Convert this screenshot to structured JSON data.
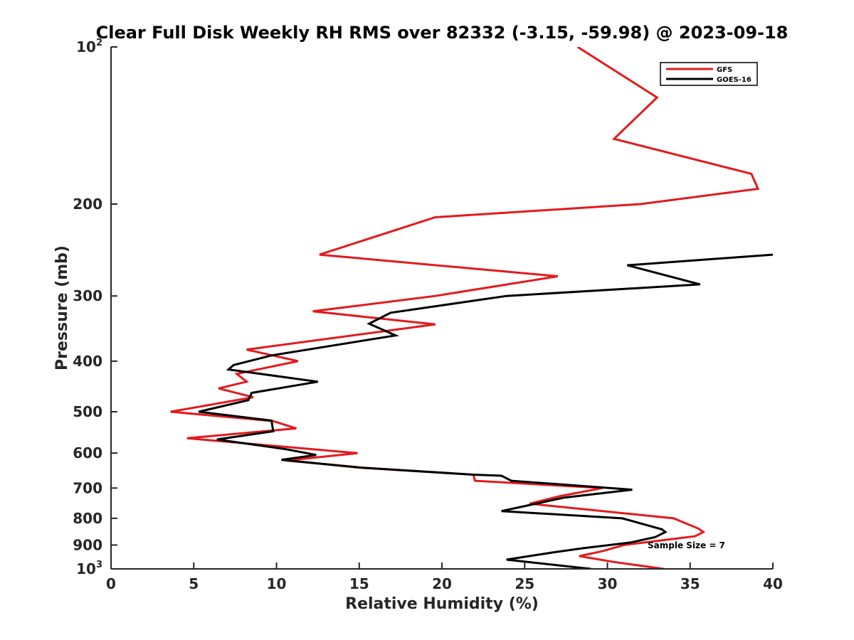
{
  "chart_data": {
    "type": "line",
    "title": "Clear Full Disk Weekly RH RMS over 82332 (-3.15, -59.98) @ 2023-09-18",
    "xlabel": "Relative Humidity (%)",
    "ylabel": "Pressure (mb)",
    "xlim": [
      0,
      40
    ],
    "ylim": [
      100,
      1000
    ],
    "y_scale": "log",
    "y_reversed": true,
    "grid": false,
    "legend_position": "top-right",
    "x_ticks": [
      "0",
      "5",
      "10",
      "15",
      "20",
      "25",
      "30",
      "35",
      "40"
    ],
    "y_ticks": [
      {
        "value": 100,
        "base": "10",
        "exp": "2"
      },
      {
        "value": 200,
        "label": "200"
      },
      {
        "value": 300,
        "label": "300"
      },
      {
        "value": 400,
        "label": "400"
      },
      {
        "value": 500,
        "label": "500"
      },
      {
        "value": 600,
        "label": "600"
      },
      {
        "value": 700,
        "label": "700"
      },
      {
        "value": 800,
        "label": "800"
      },
      {
        "value": 900,
        "label": "900"
      },
      {
        "value": 1000,
        "base": "10",
        "exp": "3"
      }
    ],
    "series": [
      {
        "name": "GFS",
        "color": "#e31a1c",
        "points": [
          [
            28.2,
            100
          ],
          [
            33.0,
            125
          ],
          [
            30.4,
            150
          ],
          [
            38.7,
            175
          ],
          [
            39.1,
            187
          ],
          [
            32.0,
            200
          ],
          [
            19.6,
            212
          ],
          [
            12.6,
            250
          ],
          [
            27.0,
            275
          ],
          [
            19.6,
            300
          ],
          [
            12.2,
            321
          ],
          [
            19.6,
            340
          ],
          [
            8.2,
            380
          ],
          [
            11.3,
            400
          ],
          [
            7.6,
            423
          ],
          [
            8.2,
            438
          ],
          [
            6.5,
            451
          ],
          [
            8.6,
            469
          ],
          [
            3.6,
            500
          ],
          [
            9.8,
            521
          ],
          [
            11.2,
            538
          ],
          [
            4.6,
            562
          ],
          [
            14.9,
            600
          ],
          [
            10.6,
            620
          ],
          [
            15.3,
            640
          ],
          [
            21.9,
            660
          ],
          [
            22.0,
            678
          ],
          [
            29.7,
            700
          ],
          [
            27.1,
            726
          ],
          [
            25.3,
            750
          ],
          [
            34.0,
            800
          ],
          [
            35.5,
            837
          ],
          [
            35.8,
            850
          ],
          [
            35.3,
            866
          ],
          [
            31.0,
            900
          ],
          [
            29.7,
            925
          ],
          [
            28.3,
            945
          ],
          [
            30.4,
            970
          ],
          [
            33.4,
            1000
          ]
        ]
      },
      {
        "name": "GOES-16",
        "color": "#000000",
        "points": [
          [
            40.0,
            250
          ],
          [
            31.2,
            262
          ],
          [
            35.6,
            285
          ],
          [
            23.9,
            300
          ],
          [
            16.9,
            323
          ],
          [
            15.6,
            339
          ],
          [
            17.2,
            357
          ],
          [
            9.7,
            390
          ],
          [
            7.4,
            407
          ],
          [
            7.1,
            415
          ],
          [
            12.5,
            438
          ],
          [
            8.5,
            460
          ],
          [
            8.3,
            475
          ],
          [
            5.3,
            500
          ],
          [
            9.7,
            520
          ],
          [
            9.8,
            545
          ],
          [
            6.4,
            565
          ],
          [
            10.6,
            590
          ],
          [
            12.4,
            605
          ],
          [
            10.3,
            618
          ],
          [
            15.1,
            640
          ],
          [
            21.9,
            660
          ],
          [
            23.6,
            663
          ],
          [
            24.2,
            678
          ],
          [
            31.5,
            705
          ],
          [
            27.4,
            730
          ],
          [
            23.6,
            775
          ],
          [
            30.9,
            800
          ],
          [
            33.3,
            840
          ],
          [
            33.5,
            850
          ],
          [
            32.9,
            869
          ],
          [
            31.4,
            890
          ],
          [
            28.5,
            913
          ],
          [
            26.7,
            930
          ],
          [
            23.9,
            960
          ],
          [
            29.0,
            1000
          ]
        ]
      }
    ],
    "annotations": [
      "Sample Size = 7"
    ]
  }
}
